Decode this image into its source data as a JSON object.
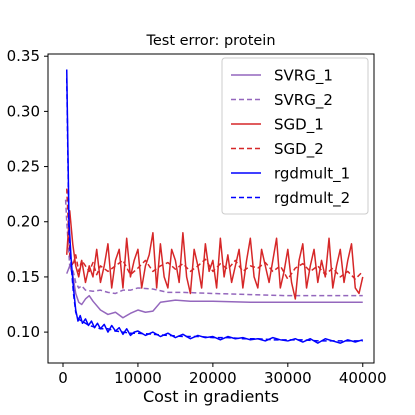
{
  "chart_data": {
    "type": "line",
    "title": "Test error: protein",
    "xlabel": "Cost in gradients",
    "ylabel": "",
    "xlim": [
      -2000,
      41500
    ],
    "ylim": [
      0.072,
      0.352
    ],
    "xticks": [
      0,
      10000,
      20000,
      30000,
      40000
    ],
    "yticks": [
      0.1,
      0.15,
      0.2,
      0.25,
      0.3,
      0.35
    ],
    "xtick_labels": [
      "0",
      "10000",
      "20000",
      "30000",
      "40000"
    ],
    "ytick_labels": [
      "0.10",
      "0.15",
      "0.20",
      "0.25",
      "0.30",
      "0.35"
    ],
    "grid": false,
    "legend": "top-right",
    "series": [
      {
        "name": "SVRG_1",
        "color": "#9467bd",
        "dash": "solid",
        "x": [
          500,
          900,
          1300,
          1700,
          2100,
          2500,
          3000,
          3500,
          4000,
          5000,
          6000,
          7000,
          8000,
          9000,
          10000,
          11000,
          12000,
          13000,
          15000,
          17000,
          20000,
          25000,
          30000,
          35000,
          40000
        ],
        "y": [
          0.153,
          0.16,
          0.152,
          0.135,
          0.127,
          0.125,
          0.13,
          0.133,
          0.128,
          0.12,
          0.116,
          0.118,
          0.113,
          0.117,
          0.12,
          0.118,
          0.119,
          0.127,
          0.129,
          0.128,
          0.128,
          0.127,
          0.127,
          0.127,
          0.127
        ]
      },
      {
        "name": "SVRG_2",
        "color": "#9467bd",
        "dash": "dashed",
        "x": [
          500,
          900,
          1300,
          1700,
          2100,
          2500,
          3000,
          4000,
          5000,
          6000,
          7000,
          8000,
          9000,
          10000,
          12000,
          14000,
          16000,
          20000,
          25000,
          30000,
          35000,
          40000
        ],
        "y": [
          0.2,
          0.16,
          0.157,
          0.145,
          0.14,
          0.142,
          0.138,
          0.137,
          0.138,
          0.136,
          0.135,
          0.138,
          0.138,
          0.14,
          0.139,
          0.136,
          0.136,
          0.135,
          0.134,
          0.133,
          0.133,
          0.133
        ],
        "y_start": 0.22
      },
      {
        "name": "SGD_1",
        "color": "#d62728",
        "dash": "solid",
        "x": [
          500,
          900,
          1300,
          1700,
          2100,
          2500,
          3000,
          3500,
          4000,
          4500,
          5000,
          5500,
          6000,
          6500,
          7000,
          7500,
          8000,
          8500,
          9000,
          9500,
          10000,
          10500,
          11000,
          11500,
          12000,
          12500,
          13000,
          13500,
          14000,
          14500,
          15000,
          15500,
          16000,
          16500,
          17000,
          17500,
          18000,
          18500,
          19000,
          19500,
          20000,
          20500,
          21000,
          21500,
          22000,
          22500,
          23000,
          23500,
          24000,
          24500,
          25000,
          25500,
          26000,
          26500,
          27000,
          27500,
          28000,
          28500,
          29000,
          29500,
          30000,
          30500,
          31000,
          31500,
          32000,
          32500,
          33000,
          33500,
          34000,
          34500,
          35000,
          35500,
          36000,
          36500,
          37000,
          37500,
          38000,
          38500,
          39000,
          39500,
          40000
        ],
        "y": [
          0.17,
          0.21,
          0.18,
          0.16,
          0.15,
          0.165,
          0.145,
          0.16,
          0.15,
          0.175,
          0.145,
          0.16,
          0.18,
          0.14,
          0.165,
          0.175,
          0.14,
          0.185,
          0.15,
          0.165,
          0.175,
          0.14,
          0.16,
          0.17,
          0.19,
          0.14,
          0.18,
          0.15,
          0.14,
          0.175,
          0.165,
          0.145,
          0.19,
          0.15,
          0.135,
          0.175,
          0.16,
          0.14,
          0.18,
          0.155,
          0.165,
          0.14,
          0.185,
          0.15,
          0.17,
          0.145,
          0.16,
          0.175,
          0.14,
          0.165,
          0.185,
          0.15,
          0.14,
          0.175,
          0.16,
          0.145,
          0.165,
          0.185,
          0.14,
          0.155,
          0.175,
          0.145,
          0.13,
          0.165,
          0.18,
          0.14,
          0.16,
          0.175,
          0.145,
          0.165,
          0.15,
          0.185,
          0.14,
          0.16,
          0.175,
          0.145,
          0.165,
          0.18,
          0.14,
          0.135,
          0.15
        ]
      },
      {
        "name": "SGD_2",
        "color": "#d62728",
        "dash": "dashed",
        "x": [
          500,
          900,
          1300,
          1700,
          2100,
          2500,
          3000,
          3500,
          4000,
          4500,
          5000,
          6000,
          7000,
          8000,
          9000,
          10000,
          11000,
          12000,
          13000,
          14000,
          15000,
          16000,
          17000,
          18000,
          19000,
          20000,
          21000,
          22000,
          23000,
          24000,
          25000,
          26000,
          27000,
          28000,
          29000,
          30000,
          31000,
          32000,
          33000,
          34000,
          35000,
          36000,
          37000,
          38000,
          39000,
          40000
        ],
        "y": [
          0.23,
          0.17,
          0.16,
          0.17,
          0.155,
          0.165,
          0.16,
          0.155,
          0.163,
          0.152,
          0.16,
          0.155,
          0.16,
          0.165,
          0.152,
          0.158,
          0.165,
          0.155,
          0.16,
          0.163,
          0.157,
          0.162,
          0.155,
          0.16,
          0.166,
          0.155,
          0.162,
          0.157,
          0.165,
          0.155,
          0.16,
          0.158,
          0.163,
          0.155,
          0.16,
          0.148,
          0.158,
          0.162,
          0.155,
          0.16,
          0.152,
          0.158,
          0.15,
          0.155,
          0.148,
          0.155
        ]
      },
      {
        "name": "rgdmult_1",
        "color": "#0000ff",
        "dash": "solid",
        "x": [
          500,
          800,
          1100,
          1400,
          1700,
          2000,
          2300,
          2600,
          3000,
          3400,
          3800,
          4200,
          4600,
          5000,
          5500,
          6000,
          6500,
          7000,
          7500,
          8000,
          8500,
          9000,
          9500,
          10000,
          11000,
          12000,
          13000,
          14000,
          15000,
          16000,
          17000,
          18000,
          19000,
          20000,
          21000,
          22000,
          23000,
          24000,
          25000,
          26000,
          27000,
          28000,
          29000,
          30000,
          31000,
          32000,
          33000,
          34000,
          35000,
          36000,
          37000,
          38000,
          39000,
          40000
        ],
        "y": [
          0.338,
          0.2,
          0.165,
          0.14,
          0.12,
          0.11,
          0.115,
          0.108,
          0.112,
          0.106,
          0.11,
          0.104,
          0.108,
          0.103,
          0.107,
          0.1,
          0.106,
          0.101,
          0.104,
          0.098,
          0.103,
          0.097,
          0.1,
          0.101,
          0.097,
          0.1,
          0.096,
          0.099,
          0.095,
          0.098,
          0.094,
          0.097,
          0.095,
          0.096,
          0.093,
          0.096,
          0.094,
          0.095,
          0.093,
          0.094,
          0.092,
          0.095,
          0.093,
          0.092,
          0.094,
          0.091,
          0.094,
          0.09,
          0.094,
          0.092,
          0.09,
          0.093,
          0.091,
          0.093
        ]
      },
      {
        "name": "rgdmult_2",
        "color": "#0000ff",
        "dash": "dashed",
        "x": [
          500,
          800,
          1100,
          1400,
          1700,
          2000,
          2500,
          3000,
          3500,
          4000,
          5000,
          6000,
          7000,
          8000,
          9000,
          10000,
          12000,
          14000,
          16000,
          18000,
          20000,
          22000,
          24000,
          26000,
          28000,
          30000,
          32000,
          34000,
          36000,
          38000,
          40000
        ],
        "y": [
          0.33,
          0.19,
          0.16,
          0.135,
          0.118,
          0.112,
          0.11,
          0.108,
          0.106,
          0.105,
          0.103,
          0.103,
          0.101,
          0.1,
          0.099,
          0.099,
          0.098,
          0.097,
          0.096,
          0.096,
          0.095,
          0.095,
          0.094,
          0.094,
          0.093,
          0.093,
          0.093,
          0.092,
          0.092,
          0.092,
          0.092
        ]
      }
    ]
  }
}
